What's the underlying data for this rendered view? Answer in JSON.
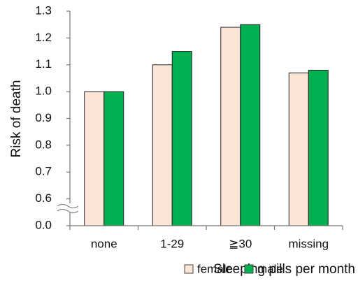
{
  "chart_data": {
    "type": "bar",
    "y_label": "Risk of death",
    "x_label": "Sleeping pills per month",
    "categories": [
      "none",
      "1-29",
      "≧30",
      "missing"
    ],
    "series": [
      {
        "name": "female",
        "color": "#fbe5d6",
        "values": [
          1.0,
          1.1,
          1.24,
          1.07
        ]
      },
      {
        "name": "male",
        "color": "#00b050",
        "values": [
          1.0,
          1.15,
          1.25,
          1.08
        ]
      }
    ],
    "ylim": [
      0,
      1.3
    ],
    "yticks": [
      {
        "value": 0,
        "label": "0.0"
      },
      0.6,
      0.7,
      0.8,
      0.9,
      {
        "value": 1.0,
        "label": "1.0"
      },
      1.1,
      1.2,
      1.3
    ],
    "grid": false
  }
}
